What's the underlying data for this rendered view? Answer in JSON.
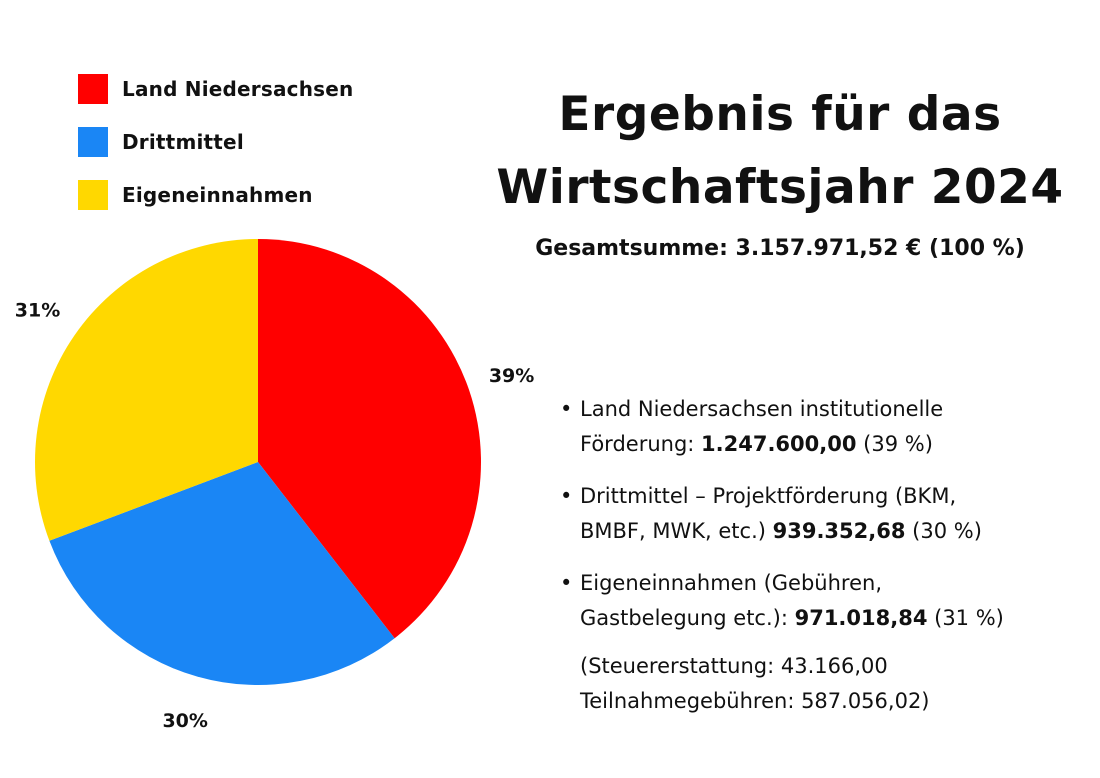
{
  "legend": [
    {
      "label": "Land Niedersachsen",
      "color": "#ff0000"
    },
    {
      "label": "Drittmittel",
      "color": "#1a86f5"
    },
    {
      "label": "Eigeneinnahmen",
      "color": "#ffd800"
    }
  ],
  "title": {
    "line1": "Ergebnis für das",
    "line2": "Wirtschaftsjahr 2024"
  },
  "total": "Gesamtsumme: 3.157.971,52 € (100 %)",
  "details": {
    "item1": {
      "text_a": "Land Niedersachsen institutionelle",
      "text_b": "Förderung: ",
      "amount": "1.247.600,00",
      "pct": " (39 %)"
    },
    "item2": {
      "text_a": "Drittmittel – Projektförderung (BKM,",
      "text_b": "BMBF, MWK, etc.) ",
      "amount": "939.352,68",
      "pct": " (30 %)"
    },
    "item3": {
      "text_a": "Eigeneinnahmen (Gebühren,",
      "text_b": "Gastbelegung etc.): ",
      "amount": "971.018,84",
      "pct": " (31 %)"
    },
    "footnote": {
      "line1": "(Steuererstattung: 43.166,00",
      "line2": "Teilnahmegebühren: 587.056,02)"
    }
  },
  "chart_data": {
    "type": "pie",
    "categories": [
      "Land Niedersachsen",
      "Drittmittel",
      "Eigeneinnahmen"
    ],
    "values": [
      1247600.0,
      939352.68,
      971018.84
    ],
    "percent_labels": [
      "39%",
      "30%",
      "31%"
    ],
    "colors": [
      "#ff0000",
      "#1a86f5",
      "#ffd800"
    ],
    "start_angle_deg": 0,
    "direction": "clockwise",
    "legend_position": "top-left"
  }
}
